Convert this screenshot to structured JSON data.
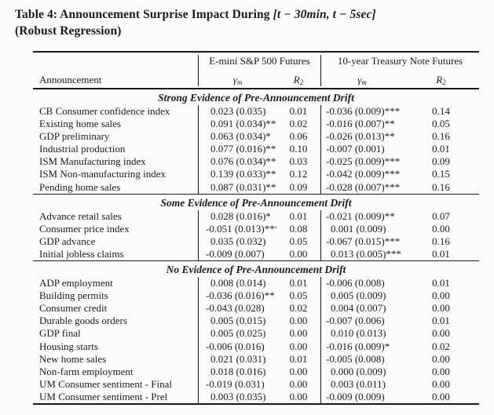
{
  "title": {
    "prefix": "Table 4: Announcement Surprise Impact During ",
    "math": "[t − 30min, t − 5sec]",
    "line2": "(Robust Regression)"
  },
  "colors": {
    "background": "#fcfcfc",
    "text": "#1b1b1b",
    "rule": "#1a1a1a"
  },
  "table": {
    "header": {
      "announcement_label": "Announcement",
      "groups": [
        {
          "label": "E-mini S&P 500 Futures"
        },
        {
          "label": "10-year Treasury Note Futures"
        }
      ],
      "gamma": {
        "symbol": "γ",
        "sub": "m"
      },
      "r2": {
        "symbol": "R",
        "sup": "2"
      }
    },
    "sections": [
      {
        "title": "Strong Evidence of Pre-Announcement Drift",
        "rows": [
          {
            "announcement": "CB Consumer confidence index",
            "sp_gamma": "0.023 (0.035)",
            "sp_r2": "0.01",
            "tn_gamma": "-0.036 (0.009)***",
            "tn_r2": "0.14"
          },
          {
            "announcement": "Existing home sales",
            "sp_gamma": "0.091 (0.034)***",
            "sp_r2": "0.02",
            "tn_gamma": "-0.016 (0.007)**",
            "tn_r2": "0.05"
          },
          {
            "announcement": "GDP preliminary",
            "sp_gamma": "0.063 (0.034)*",
            "sp_r2": "0.06",
            "tn_gamma": "-0.026 (0.013)**",
            "tn_r2": "0.16"
          },
          {
            "announcement": "Industrial production",
            "sp_gamma": "0.077 (0.016)***",
            "sp_r2": "0.10",
            "tn_gamma": "-0.007 (0.001)",
            "tn_r2": "0.01"
          },
          {
            "announcement": "ISM Manufacturing index",
            "sp_gamma": "0.076 (0.034)**",
            "sp_r2": "0.03",
            "tn_gamma": "-0.025 (0.009)***",
            "tn_r2": "0.09"
          },
          {
            "announcement": "ISM Non-manufacturing index",
            "sp_gamma": "0.139 (0.033)***",
            "sp_r2": "0.12",
            "tn_gamma": "-0.042 (0.009)***",
            "tn_r2": "0.15"
          },
          {
            "announcement": "Pending home sales",
            "sp_gamma": "0.087 (0.031)***",
            "sp_r2": "0.09",
            "tn_gamma": "-0.028 (0.007)***",
            "tn_r2": "0.16"
          }
        ]
      },
      {
        "title": "Some Evidence of Pre-Announcement Drift",
        "rows": [
          {
            "announcement": "Advance retail sales",
            "sp_gamma": "0.028 (0.016)*",
            "sp_r2": "0.01",
            "tn_gamma": "-0.021 (0.009)**",
            "tn_r2": "0.07"
          },
          {
            "announcement": "Consumer price index",
            "sp_gamma": "-0.051 (0.013)***",
            "sp_r2": "0.08",
            "tn_gamma": "0.001 (0.009)",
            "tn_r2": "0.00"
          },
          {
            "announcement": "GDP advance",
            "sp_gamma": "0.035 (0.032)",
            "sp_r2": "0.05",
            "tn_gamma": "-0.067 (0.015)***",
            "tn_r2": "0.16"
          },
          {
            "announcement": "Initial jobless claims",
            "sp_gamma": "-0.009 (0.007)",
            "sp_r2": "0.00",
            "tn_gamma": "0.013 (0.005)***",
            "tn_r2": "0.01"
          }
        ]
      },
      {
        "title": "No Evidence of Pre-Announcement Drift",
        "rows": [
          {
            "announcement": "ADP employment",
            "sp_gamma": "0.008 (0.014)",
            "sp_r2": "0.01",
            "tn_gamma": "-0.006 (0.008)",
            "tn_r2": "0.01"
          },
          {
            "announcement": "Building permits",
            "sp_gamma": "-0.036 (0.016)**",
            "sp_r2": "0.05",
            "tn_gamma": "0.005 (0.009)",
            "tn_r2": "0.00"
          },
          {
            "announcement": "Consumer credit",
            "sp_gamma": "-0.043 (0.028)",
            "sp_r2": "0.02",
            "tn_gamma": "0.004 (0.007)",
            "tn_r2": "0.00"
          },
          {
            "announcement": "Durable goods orders",
            "sp_gamma": "0.005 (0.015)",
            "sp_r2": "0.00",
            "tn_gamma": "-0.007 (0.006)",
            "tn_r2": "0.01"
          },
          {
            "announcement": "GDP final",
            "sp_gamma": "0.005 (0.025)",
            "sp_r2": "0.00",
            "tn_gamma": "0.010 (0.013)",
            "tn_r2": "0.00"
          },
          {
            "announcement": "Housing starts",
            "sp_gamma": "-0.006 (0.016)",
            "sp_r2": "0.00",
            "tn_gamma": "-0.016 (0.009)*",
            "tn_r2": "0.02"
          },
          {
            "announcement": "New home sales",
            "sp_gamma": "0.021 (0.031)",
            "sp_r2": "0.01",
            "tn_gamma": "-0.005 (0.008)",
            "tn_r2": "0.00"
          },
          {
            "announcement": "Non-farm employment",
            "sp_gamma": "0.018 (0.016)",
            "sp_r2": "0.00",
            "tn_gamma": "0.000 (0.009)",
            "tn_r2": "0.00"
          },
          {
            "announcement": "UM Consumer sentiment - Final",
            "sp_gamma": "-0.019 (0.031)",
            "sp_r2": "0.00",
            "tn_gamma": "0.003 (0.011)",
            "tn_r2": "0.00"
          },
          {
            "announcement": "UM Consumer sentiment - Prel",
            "sp_gamma": "0.003 (0.035)",
            "sp_r2": "0.00",
            "tn_gamma": "-0.009 (0.009)",
            "tn_r2": "0.00"
          }
        ]
      }
    ]
  }
}
